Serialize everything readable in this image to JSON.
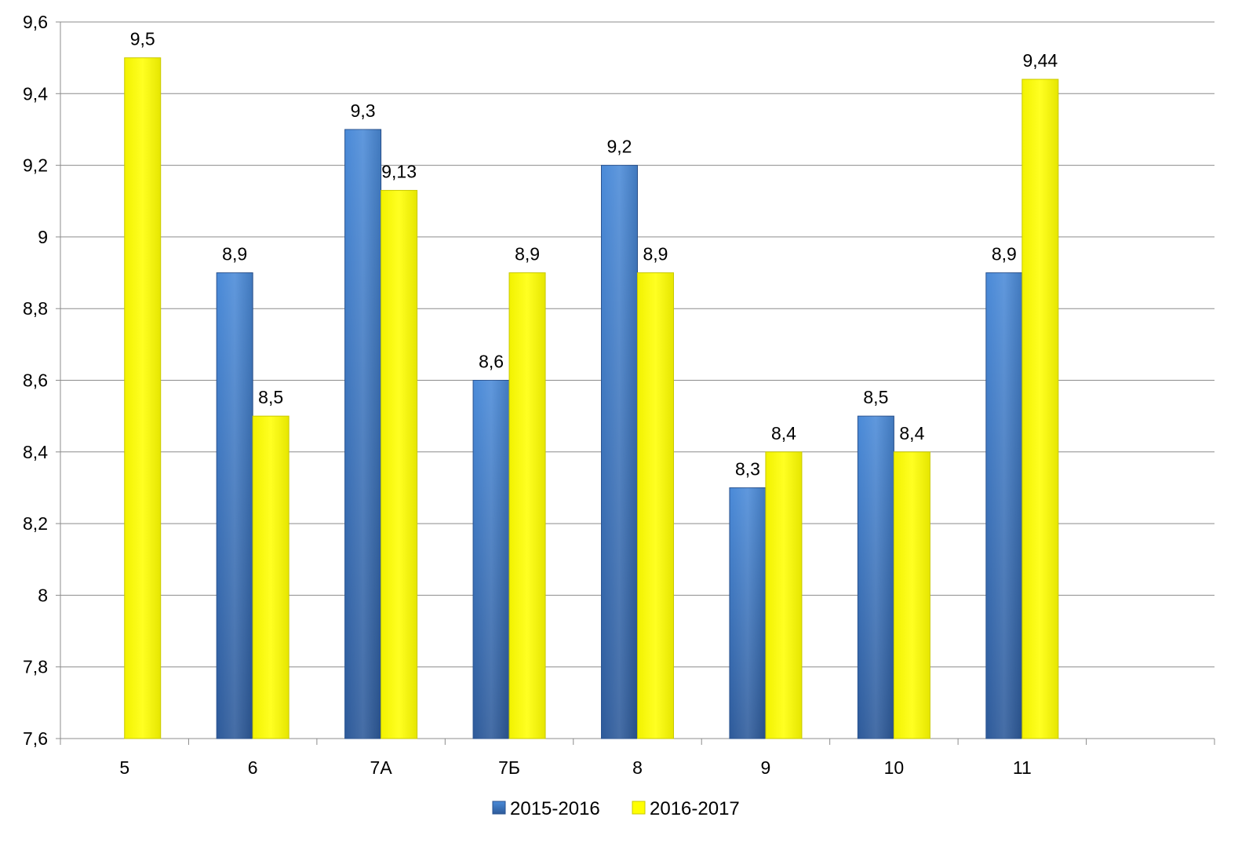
{
  "chart_data": {
    "type": "bar",
    "categories": [
      "5",
      "6",
      "7А",
      "7Б",
      "8",
      "9",
      "10",
      "11",
      ""
    ],
    "series": [
      {
        "name": "2015-2016",
        "values": [
          null,
          8.9,
          9.3,
          8.6,
          9.2,
          8.3,
          8.5,
          8.9,
          null
        ],
        "labels": [
          "",
          "8,9",
          "9,3",
          "8,6",
          "9,2",
          "8,3",
          "8,5",
          "8,9",
          ""
        ],
        "color": "#3d73c4"
      },
      {
        "name": "2016-2017",
        "values": [
          9.5,
          8.5,
          9.13,
          8.9,
          8.9,
          8.4,
          8.4,
          9.44,
          null
        ],
        "labels": [
          "9,5",
          "8,5",
          "9,13",
          "8,9",
          "8,9",
          "8,4",
          "8,4",
          "9,44",
          ""
        ],
        "color": "#ffff00"
      }
    ],
    "ylim": [
      7.6,
      9.6
    ],
    "yticks": [
      7.6,
      7.8,
      8,
      8.2,
      8.4,
      8.6,
      8.8,
      9,
      9.2,
      9.4,
      9.6
    ],
    "ytick_labels": [
      "7,6",
      "7,8",
      "8",
      "8,2",
      "8,4",
      "8,6",
      "8,8",
      "9",
      "9,2",
      "9,4",
      "9,6"
    ],
    "grid": true,
    "legend_position": "bottom",
    "title": "",
    "xlabel": "",
    "ylabel": ""
  }
}
